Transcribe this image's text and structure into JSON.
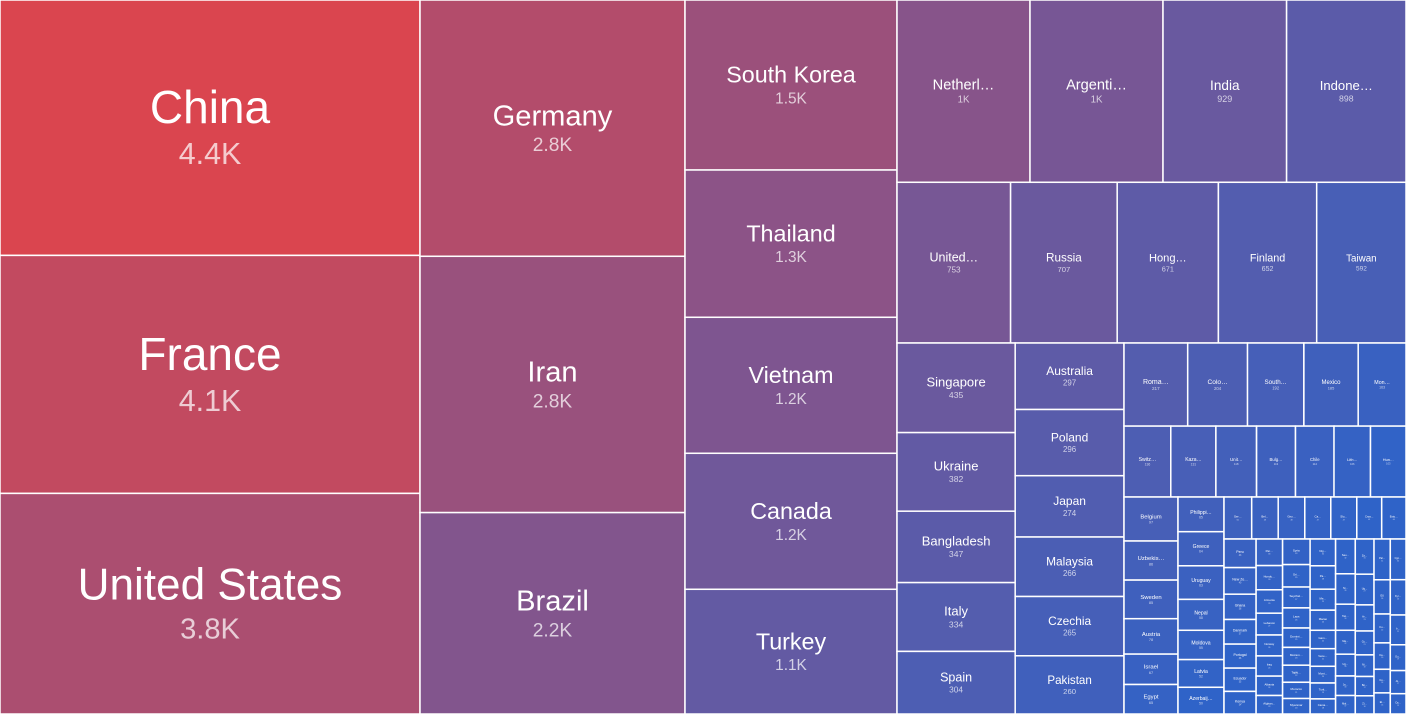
{
  "chart_data": {
    "type": "treemap",
    "title": "",
    "color_scale": [
      "#ff3f35",
      "#2f63c8"
    ],
    "columns": [
      {
        "cells": [
          {
            "name": "China",
            "label": "4.4K",
            "value": 4400
          },
          {
            "name": "France",
            "label": "4.1K",
            "value": 4100
          },
          {
            "name": "United States",
            "label": "3.8K",
            "value": 3800
          }
        ]
      },
      {
        "cells": [
          {
            "name": "Germany",
            "label": "2.8K",
            "value": 2800
          },
          {
            "name": "Iran",
            "label": "2.8K",
            "value": 2800
          },
          {
            "name": "Brazil",
            "label": "2.2K",
            "value": 2200
          }
        ]
      },
      {
        "cells": [
          {
            "name": "South Korea",
            "label": "1.5K",
            "value": 1500
          },
          {
            "name": "Thailand",
            "label": "1.3K",
            "value": 1300
          },
          {
            "name": "Vietnam",
            "label": "1.2K",
            "value": 1200
          },
          {
            "name": "Canada",
            "label": "1.2K",
            "value": 1200
          },
          {
            "name": "Turkey",
            "label": "1.1K",
            "value": 1100
          }
        ]
      }
    ],
    "upper_rows": [
      {
        "cells": [
          {
            "name": "Netherl…",
            "label": "1K",
            "value": 1000
          },
          {
            "name": "Argenti…",
            "label": "1K",
            "value": 1000
          },
          {
            "name": "India",
            "label": "929",
            "value": 929
          },
          {
            "name": "Indone…",
            "label": "898",
            "value": 898
          }
        ]
      },
      {
        "cells": [
          {
            "name": "United…",
            "label": "753",
            "value": 753
          },
          {
            "name": "Russia",
            "label": "707",
            "value": 707
          },
          {
            "name": "Hong…",
            "label": "671",
            "value": 671
          },
          {
            "name": "Finland",
            "label": "652",
            "value": 652
          },
          {
            "name": "Taiwan",
            "label": "592",
            "value": 592
          }
        ]
      }
    ],
    "lower_columns": [
      {
        "cells": [
          {
            "name": "Singapore",
            "label": "435",
            "value": 435
          },
          {
            "name": "Ukraine",
            "label": "382",
            "value": 382
          },
          {
            "name": "Bangladesh",
            "label": "347",
            "value": 347
          },
          {
            "name": "Italy",
            "label": "334",
            "value": 334
          },
          {
            "name": "Spain",
            "label": "304",
            "value": 304
          }
        ]
      },
      {
        "cells": [
          {
            "name": "Australia",
            "label": "297",
            "value": 297
          },
          {
            "name": "Poland",
            "label": "296",
            "value": 296
          },
          {
            "name": "Japan",
            "label": "274",
            "value": 274
          },
          {
            "name": "Malaysia",
            "label": "266",
            "value": 266
          },
          {
            "name": "Czechia",
            "label": "265",
            "value": 265
          },
          {
            "name": "Pakistan",
            "label": "260",
            "value": 260
          }
        ]
      }
    ],
    "small_rows": [
      {
        "cells": [
          {
            "name": "Roma…",
            "label": "217",
            "value": 217
          },
          {
            "name": "Colo…",
            "label": "204",
            "value": 204
          },
          {
            "name": "South…",
            "label": "192",
            "value": 192
          },
          {
            "name": "Mexico",
            "label": "185",
            "value": 185
          },
          {
            "name": "Mon…",
            "label": "163",
            "value": 163
          }
        ]
      },
      {
        "cells": [
          {
            "name": "Switz…",
            "label": "136",
            "value": 136
          },
          {
            "name": "Kaza…",
            "label": "131",
            "value": 131
          },
          {
            "name": "Unit…",
            "label": "118",
            "value": 118
          },
          {
            "name": "Bulg…",
            "label": "113",
            "value": 113
          },
          {
            "name": "Chile",
            "label": "112",
            "value": 112
          },
          {
            "name": "Lith…",
            "label": "106",
            "value": 106
          },
          {
            "name": "Hun…",
            "label": "103",
            "value": 103
          }
        ]
      }
    ],
    "tiny_columns": [
      {
        "cells": [
          {
            "name": "Belgium",
            "label": "97",
            "value": 97
          },
          {
            "name": "Uzbekis…",
            "label": "86",
            "value": 86
          },
          {
            "name": "Sweden",
            "label": "85",
            "value": 85
          },
          {
            "name": "Austria",
            "label": "78",
            "value": 78
          },
          {
            "name": "Israel",
            "label": "67",
            "value": 67
          },
          {
            "name": "Egypt",
            "label": "65",
            "value": 65
          }
        ]
      },
      {
        "cells": [
          {
            "name": "Philippi…",
            "label": "65",
            "value": 65
          },
          {
            "name": "Greece",
            "label": "64",
            "value": 64
          },
          {
            "name": "Uruguay",
            "label": "63",
            "value": 63
          },
          {
            "name": "Nepal",
            "label": "58",
            "value": 58
          },
          {
            "name": "Moldova",
            "label": "55",
            "value": 55
          },
          {
            "name": "Latvia",
            "label": "52",
            "value": 52
          },
          {
            "name": "Azerbaij…",
            "label": "50",
            "value": 50
          }
        ]
      }
    ],
    "micro_row": [
      {
        "name": "Ser…",
        "label": "50",
        "value": 50
      },
      {
        "name": "Bel…",
        "label": "48",
        "value": 48
      },
      {
        "name": "Geo…",
        "label": "48",
        "value": 48
      },
      {
        "name": "Ca…",
        "label": "47",
        "value": 47
      },
      {
        "name": "Slo…",
        "label": "47",
        "value": 47
      },
      {
        "name": "Croa…",
        "label": "45",
        "value": 45
      },
      {
        "name": "Esto…",
        "label": "44",
        "value": 44
      }
    ],
    "micro_grid": [
      {
        "cells": [
          {
            "name": "Peru",
            "label": "43",
            "value": 43
          },
          {
            "name": "New Ze…",
            "label": "40",
            "value": 40
          },
          {
            "name": "Ghana",
            "label": "38",
            "value": 38
          },
          {
            "name": "Danmark",
            "label": "37",
            "value": 37
          },
          {
            "name": "Portugal",
            "label": "36",
            "value": 36
          },
          {
            "name": "Ecuador",
            "label": "35",
            "value": 35
          },
          {
            "name": "Kenya",
            "label": "34",
            "value": 34
          }
        ]
      },
      {
        "cells": [
          {
            "name": "Par…",
            "label": "33",
            "value": 33
          },
          {
            "name": "Hondu…",
            "label": "30",
            "value": 30
          },
          {
            "name": "Armenia",
            "label": "29",
            "value": 29
          },
          {
            "name": "Lebanon",
            "label": "27",
            "value": 27
          },
          {
            "name": "Norway",
            "label": "26",
            "value": 26
          },
          {
            "name": "Iraq",
            "label": "25",
            "value": 25
          },
          {
            "name": "Albania",
            "label": "24",
            "value": 24
          },
          {
            "name": "Afghan…",
            "label": "23",
            "value": 23
          }
        ]
      },
      {
        "cells": [
          {
            "name": "Syria",
            "label": "33",
            "value": 33
          },
          {
            "name": "Sri…",
            "label": "29",
            "value": 29
          },
          {
            "name": "Seychel…",
            "label": "27",
            "value": 27
          },
          {
            "name": "Laos",
            "label": "26",
            "value": 26
          },
          {
            "name": "Domini…",
            "label": "25",
            "value": 25
          },
          {
            "name": "Mozam…",
            "label": "23",
            "value": 23
          },
          {
            "name": "Tajiki…",
            "label": "22",
            "value": 22
          },
          {
            "name": "Morocco",
            "label": "21",
            "value": 21
          },
          {
            "name": "Myanmar",
            "label": "20",
            "value": 20
          }
        ]
      },
      {
        "cells": [
          {
            "name": "Nig…",
            "label": "32",
            "value": 32
          },
          {
            "name": "Pa…",
            "label": "28",
            "value": 28
          },
          {
            "name": "Me…",
            "label": "25",
            "value": 25
          },
          {
            "name": "Macao",
            "label": "24",
            "value": 24
          },
          {
            "name": "Gam…",
            "label": "22",
            "value": 22
          },
          {
            "name": "Vene…",
            "label": "21",
            "value": 21
          },
          {
            "name": "Mont…",
            "label": "20",
            "value": 20
          },
          {
            "name": "Turk…",
            "label": "19",
            "value": 19
          },
          {
            "name": "Cama…",
            "label": "18",
            "value": 18
          }
        ]
      },
      {
        "cells": [
          {
            "name": "Sau…",
            "label": "32",
            "value": 32
          },
          {
            "name": "Sl…",
            "label": "28",
            "value": 28
          },
          {
            "name": "Tan…",
            "label": "24",
            "value": 24
          },
          {
            "name": "Ma…",
            "label": "22",
            "value": 22
          },
          {
            "name": "Ug…",
            "label": "20",
            "value": 20
          },
          {
            "name": "Ja…",
            "label": "18",
            "value": 18
          },
          {
            "name": "Mal…",
            "label": "17",
            "value": 17
          }
        ]
      },
      {
        "cells": [
          {
            "name": "Za…",
            "label": "31",
            "value": 31
          },
          {
            "name": "Ug…",
            "label": "27",
            "value": 27
          },
          {
            "name": "Ar…",
            "label": "23",
            "value": 23
          },
          {
            "name": "Cu…",
            "label": "21",
            "value": 21
          },
          {
            "name": "Ni…",
            "label": "19",
            "value": 19
          },
          {
            "name": "Bo…",
            "label": "17",
            "value": 17
          },
          {
            "name": "Zi…",
            "label": "16",
            "value": 16
          }
        ]
      },
      {
        "cells": [
          {
            "name": "Pal…",
            "label": "31",
            "value": 31
          },
          {
            "name": "EU",
            "label": "26",
            "value": 26
          },
          {
            "name": "Ku…",
            "label": "22",
            "value": 22
          },
          {
            "name": "Ka…",
            "label": "20",
            "value": 20
          },
          {
            "name": "Co…",
            "label": "18",
            "value": 18
          },
          {
            "name": "Et…",
            "label": "16",
            "value": 16
          }
        ]
      },
      {
        "cells": [
          {
            "name": "Cyp…",
            "label": "30",
            "value": 30
          },
          {
            "name": "Kyr…",
            "label": "26",
            "value": 26
          },
          {
            "name": "Ir…",
            "label": "22",
            "value": 22
          },
          {
            "name": "Gu…",
            "label": "19",
            "value": 19
          },
          {
            "name": "Jo…",
            "label": "17",
            "value": 17
          },
          {
            "name": "Ca…",
            "label": "15",
            "value": 15
          }
        ]
      }
    ]
  }
}
